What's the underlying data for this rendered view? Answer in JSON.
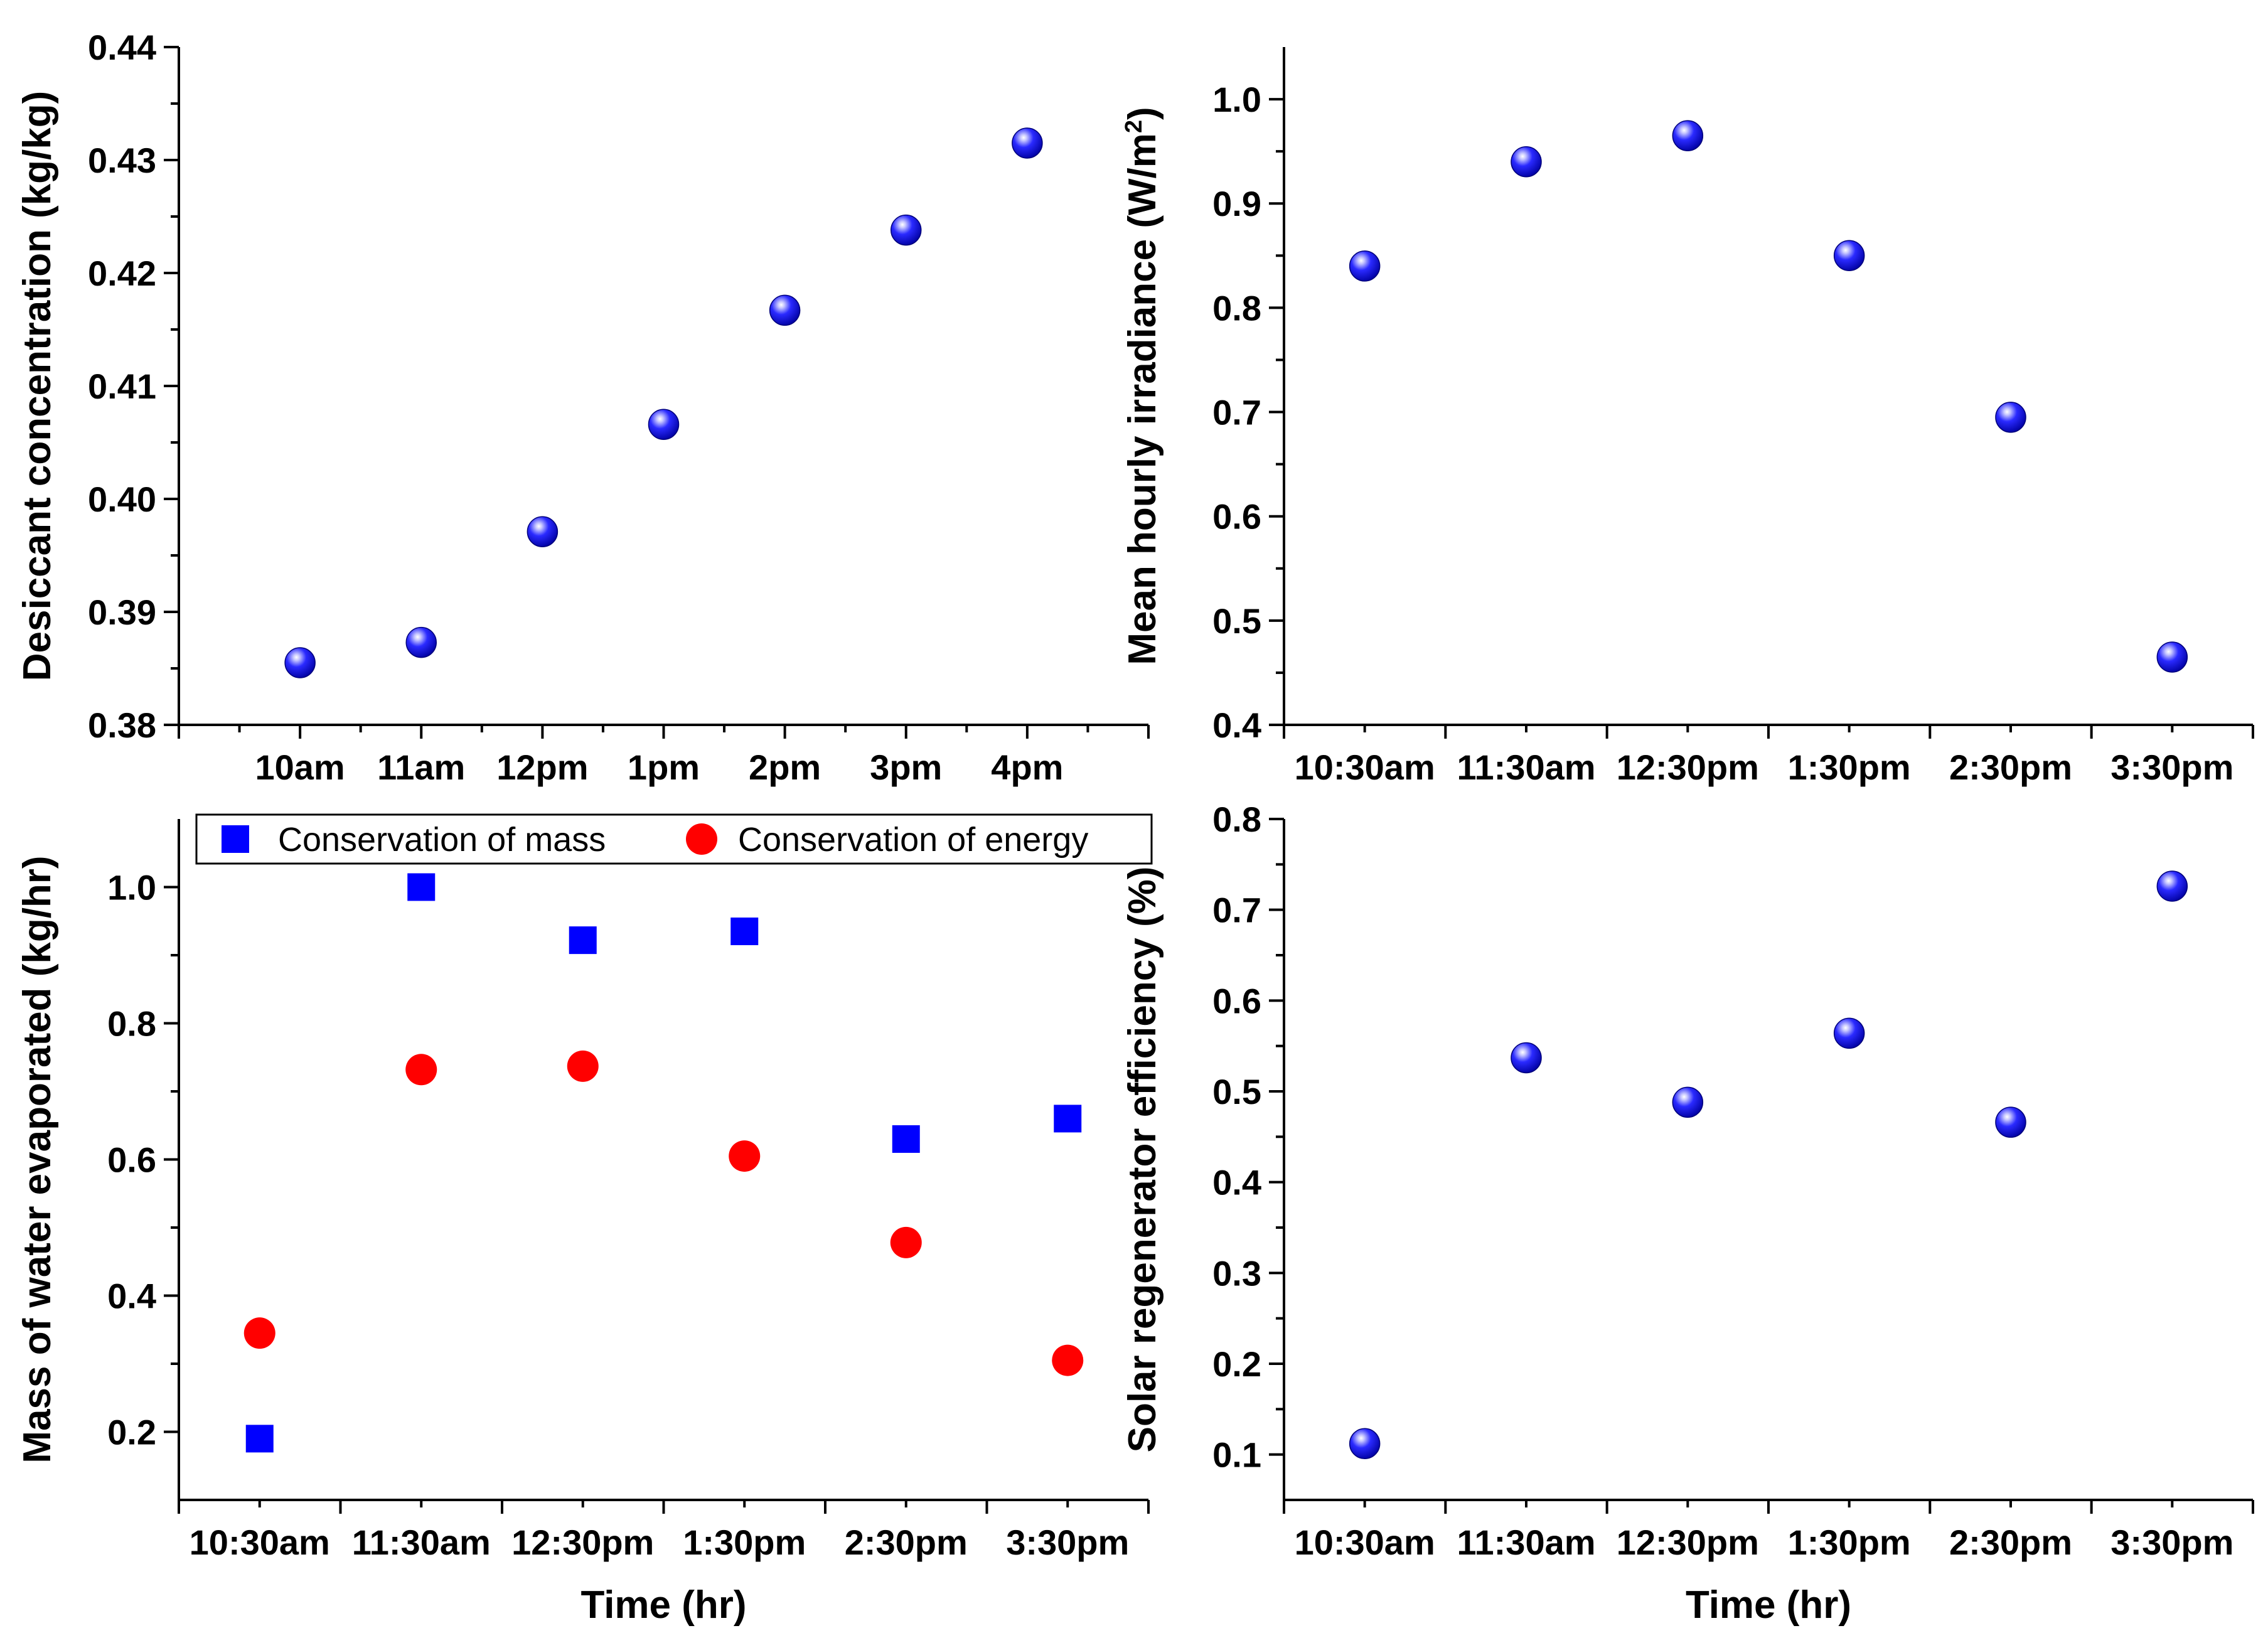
{
  "chart_data": [
    {
      "id": "desiccant",
      "type": "scatter",
      "categories": [
        "10am",
        "11am",
        "12pm",
        "1pm",
        "2pm",
        "3pm",
        "4pm"
      ],
      "series": [
        {
          "name": "Desiccant concentration",
          "marker": "sphere",
          "color": "#1a1aff",
          "values": [
            0.3855,
            0.3873,
            0.3971,
            0.4066,
            0.4167,
            0.4238,
            0.4315
          ]
        }
      ],
      "ylabel": "Desiccant concentration (kg/kg)",
      "xlabel": "",
      "ylim": [
        0.38,
        0.44
      ],
      "yticks": [
        0.38,
        0.39,
        0.4,
        0.41,
        0.42,
        0.43,
        0.44
      ],
      "ytick_labels": [
        "0.38",
        "0.39",
        "0.40",
        "0.41",
        "0.42",
        "0.43",
        "0.44"
      ]
    },
    {
      "id": "irradiance",
      "type": "scatter",
      "categories": [
        "10:30am",
        "11:30am",
        "12:30pm",
        "1:30pm",
        "2:30pm",
        "3:30pm"
      ],
      "series": [
        {
          "name": "Mean hourly irradiance",
          "marker": "sphere",
          "color": "#1a1aff",
          "values": [
            0.84,
            0.94,
            0.965,
            0.85,
            0.695,
            0.465
          ]
        }
      ],
      "ylabel": "Mean hourly irradiance (W/m",
      "ylabel_sup": "2",
      "ylabel_end": ")",
      "xlabel": "",
      "ylim": [
        0.4,
        1.05
      ],
      "yticks": [
        0.4,
        0.5,
        0.6,
        0.7,
        0.8,
        0.9,
        1.0
      ],
      "ytick_labels": [
        "0.4",
        "0.5",
        "0.6",
        "0.7",
        "0.8",
        "0.9",
        "1.0"
      ]
    },
    {
      "id": "water",
      "type": "scatter",
      "categories": [
        "10:30am",
        "11:30am",
        "12:30pm",
        "1:30pm",
        "2:30pm",
        "3:30pm"
      ],
      "series": [
        {
          "name": "Conservation of mass",
          "marker": "square",
          "color": "#0000ff",
          "values": [
            0.19,
            1.0,
            0.922,
            0.935,
            0.63,
            0.66
          ]
        },
        {
          "name": "Conservation of energy",
          "marker": "circle",
          "color": "#ff0000",
          "values": [
            0.345,
            0.732,
            0.737,
            0.605,
            0.478,
            0.305
          ]
        }
      ],
      "ylabel": "Mass of water evaporated (kg/hr)",
      "xlabel": "Time (hr)",
      "legend_position": "top",
      "ylim": [
        0.1,
        1.1
      ],
      "yticks": [
        0.2,
        0.4,
        0.6,
        0.8,
        1.0
      ],
      "ytick_labels": [
        "0.2",
        "0.4",
        "0.6",
        "0.8",
        "1.0"
      ]
    },
    {
      "id": "efficiency",
      "type": "scatter",
      "categories": [
        "10:30am",
        "11:30am",
        "12:30pm",
        "1:30pm",
        "2:30pm",
        "3:30pm"
      ],
      "series": [
        {
          "name": "Solar regenerator efficiency",
          "marker": "sphere",
          "color": "#1a1aff",
          "values": [
            0.112,
            0.537,
            0.488,
            0.564,
            0.466,
            0.726
          ]
        }
      ],
      "ylabel": "Solar regenerator efficiency (%)",
      "xlabel": "Time (hr)",
      "ylim": [
        0.05,
        0.8
      ],
      "yticks": [
        0.1,
        0.2,
        0.3,
        0.4,
        0.5,
        0.6,
        0.7,
        0.8
      ],
      "ytick_labels": [
        "0.1",
        "0.2",
        "0.3",
        "0.4",
        "0.5",
        "0.6",
        "0.7",
        "0.8"
      ]
    }
  ]
}
